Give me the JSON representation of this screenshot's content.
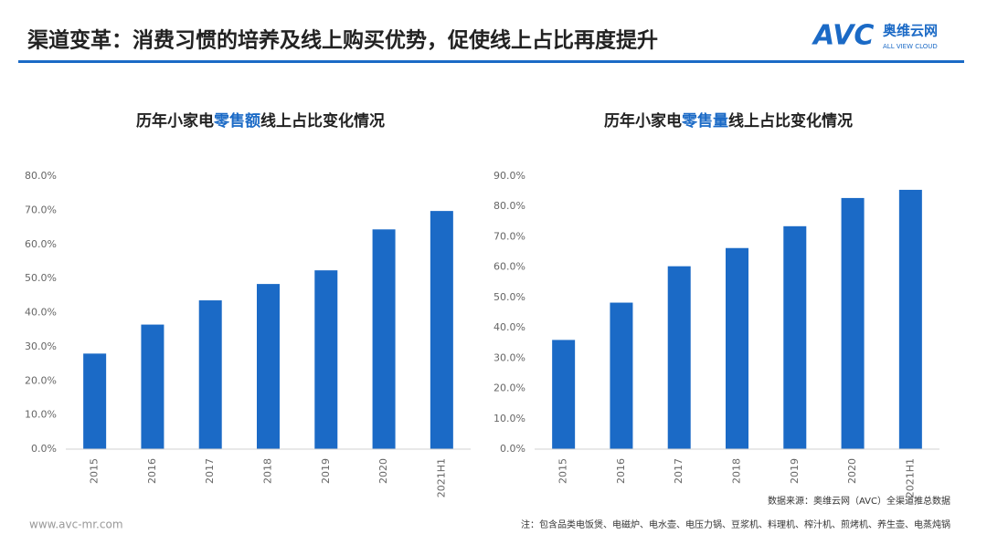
{
  "header": {
    "title": "渠道变革：消费习惯的培养及线上购买优势，促使线上占比再度提升",
    "logo_mark": "AVC",
    "logo_name": "奥维云网",
    "logo_sub": "ALL VIEW CLOUD"
  },
  "chart_data": [
    {
      "type": "bar",
      "title_parts": [
        "历年小家电",
        "零售额",
        "线上占比变化情况"
      ],
      "categories": [
        "2015",
        "2016",
        "2017",
        "2018",
        "2019",
        "2020",
        "2021H1"
      ],
      "values": [
        28,
        36.5,
        43.6,
        48.4,
        52.4,
        64.4,
        69.8
      ],
      "color": "#1b6ac6",
      "highlight_color": "#1b6ac6",
      "ylim": [
        0,
        80
      ],
      "yticks": [
        {
          "value": 0,
          "label": "0.0%"
        },
        {
          "value": 10,
          "label": "10.0%"
        },
        {
          "value": 20,
          "label": "20.0%"
        },
        {
          "value": 30,
          "label": "30.0%"
        },
        {
          "value": 40,
          "label": "40.0%"
        },
        {
          "value": 50,
          "label": "50.0%"
        },
        {
          "value": 60,
          "label": "60.0%"
        },
        {
          "value": 70,
          "label": "70.0%"
        },
        {
          "value": 80,
          "label": "80.0%"
        }
      ]
    },
    {
      "type": "bar",
      "title_parts": [
        "历年小家电",
        "零售量",
        "线上占比变化情况"
      ],
      "categories": [
        "2015",
        "2016",
        "2017",
        "2018",
        "2019",
        "2020",
        "2021H1"
      ],
      "values": [
        36,
        48.3,
        60.3,
        66.3,
        73.5,
        82.8,
        85.5
      ],
      "color": "#1b6ac6",
      "highlight_color": "#1b6ac6",
      "ylim": [
        0,
        90
      ],
      "yticks": [
        {
          "value": 0,
          "label": "0.0%"
        },
        {
          "value": 10,
          "label": "10.0%"
        },
        {
          "value": 20,
          "label": "20.0%"
        },
        {
          "value": 30,
          "label": "30.0%"
        },
        {
          "value": 40,
          "label": "40.0%"
        },
        {
          "value": 50,
          "label": "50.0%"
        },
        {
          "value": 60,
          "label": "60.0%"
        },
        {
          "value": 70,
          "label": "70.0%"
        },
        {
          "value": 80,
          "label": "80.0%"
        },
        {
          "value": 90,
          "label": "90.0%"
        }
      ]
    }
  ],
  "footer": {
    "source": "数据来源：奥维云网（AVC）全渠道推总数据",
    "note": "注：包含品类电饭煲、电磁炉、电水壶、电压力锅、豆浆机、料理机、榨汁机、煎烤机、养生壶、电蒸炖锅",
    "website": "www.avc-mr.com"
  }
}
